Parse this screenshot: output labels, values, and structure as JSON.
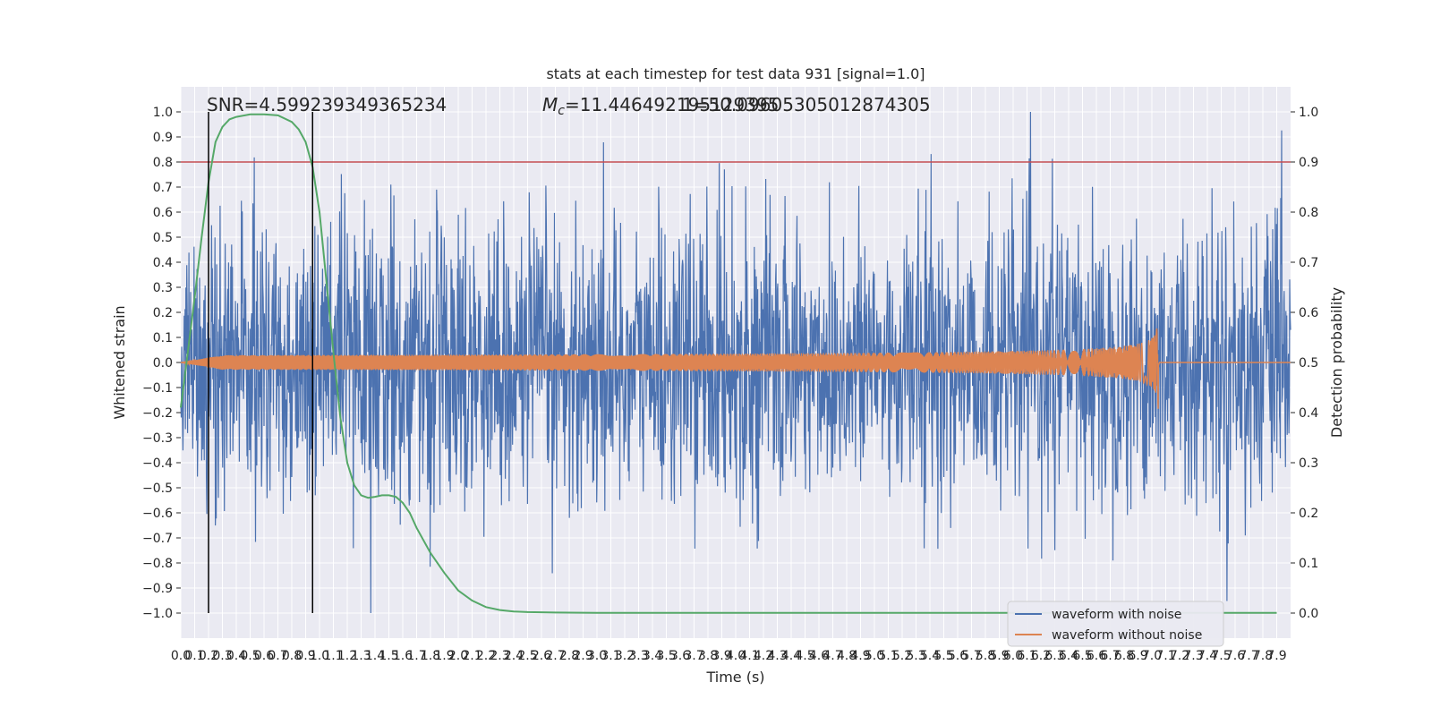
{
  "chart_data": {
    "type": "line",
    "title": "stats at each timestep for test data 931 [signal=1.0]",
    "xlabel": "Time (s)",
    "ylabel": "Whitened strain",
    "y2label": "Detection probability",
    "xlim": [
      0.0,
      8.0
    ],
    "ylim": [
      -1.1,
      1.1
    ],
    "y2lim": [
      -0.05,
      1.05
    ],
    "grid": true,
    "legend_position": "lower-right",
    "x_ticks": [
      "0.0",
      "0.1",
      "0.2",
      "0.3",
      "0.4",
      "0.5",
      "0.6",
      "0.7",
      "0.8",
      "0.9",
      "1.0",
      "1.1",
      "1.2",
      "1.3",
      "1.4",
      "1.5",
      "1.6",
      "1.7",
      "1.8",
      "1.9",
      "2.0",
      "2.1",
      "2.2",
      "2.3",
      "2.4",
      "2.5",
      "2.6",
      "2.7",
      "2.8",
      "2.9",
      "3.0",
      "3.1",
      "3.2",
      "3.3",
      "3.4",
      "3.5",
      "3.6",
      "3.7",
      "3.8",
      "3.9",
      "4.0",
      "4.1",
      "4.2",
      "4.3",
      "4.4",
      "4.5",
      "4.6",
      "4.7",
      "4.8",
      "4.9",
      "5.0",
      "5.1",
      "5.2",
      "5.3",
      "5.4",
      "5.5",
      "5.6",
      "5.7",
      "5.8",
      "5.9",
      "6.0",
      "6.1",
      "6.2",
      "6.3",
      "6.4",
      "6.5",
      "6.6",
      "6.7",
      "6.8",
      "6.9",
      "7.0",
      "7.1",
      "7.2",
      "7.3",
      "7.4",
      "7.5",
      "7.6",
      "7.7",
      "7.8",
      "7.9"
    ],
    "y_ticks": [
      "1.0",
      "0.9",
      "0.8",
      "0.7",
      "0.6",
      "0.5",
      "0.4",
      "0.3",
      "0.2",
      "0.1",
      "0.0",
      "−0.1",
      "−0.2",
      "−0.3",
      "−0.4",
      "−0.5",
      "−0.6",
      "−0.7",
      "−0.8",
      "−0.9",
      "−1.0"
    ],
    "y2_ticks": [
      "1.0",
      "0.9",
      "0.8",
      "0.7",
      "0.6",
      "0.5",
      "0.4",
      "0.3",
      "0.2",
      "0.1",
      "0.0"
    ],
    "series": [
      {
        "name": "waveform with noise",
        "color": "#4c72b0",
        "amplitude_range": [
          -1.0,
          1.0
        ]
      },
      {
        "name": "waveform without noise",
        "color": "#dd8452",
        "chirp_end_time": 7.05,
        "peak_amplitude": 0.2
      },
      {
        "color": "#55a868",
        "axis": "right",
        "x": [
          0.0,
          0.05,
          0.1,
          0.15,
          0.2,
          0.25,
          0.3,
          0.35,
          0.4,
          0.5,
          0.6,
          0.7,
          0.8,
          0.85,
          0.9,
          0.95,
          1.0,
          1.05,
          1.1,
          1.15,
          1.2,
          1.25,
          1.3,
          1.35,
          1.4,
          1.45,
          1.5,
          1.55,
          1.6,
          1.65,
          1.7,
          1.8,
          1.9,
          2.0,
          2.1,
          2.2,
          2.3,
          2.4,
          2.5,
          2.7,
          3.0,
          4.0,
          5.0,
          6.0,
          7.0,
          7.9
        ],
        "y": [
          0.41,
          0.52,
          0.63,
          0.75,
          0.86,
          0.94,
          0.97,
          0.985,
          0.99,
          0.995,
          0.995,
          0.993,
          0.98,
          0.965,
          0.94,
          0.89,
          0.8,
          0.66,
          0.52,
          0.39,
          0.3,
          0.255,
          0.235,
          0.23,
          0.232,
          0.235,
          0.235,
          0.232,
          0.22,
          0.2,
          0.17,
          0.12,
          0.08,
          0.045,
          0.025,
          0.012,
          0.006,
          0.003,
          0.002,
          0.001,
          0.0005,
          0.0005,
          0.0005,
          0.0005,
          0.0005,
          0.0005
        ]
      }
    ],
    "threshold": {
      "value": 0.9,
      "axis": "right",
      "color": "#c44e52"
    },
    "vertical_lines": [
      0.2,
      0.95
    ],
    "annotations": {
      "snr": "SNR=4.599239349365234",
      "mc_symbol": "M",
      "mc_sub": "c",
      "mc_text": "=11.446492195129395",
      "second_text": "1=50.09605305012874305"
    }
  }
}
